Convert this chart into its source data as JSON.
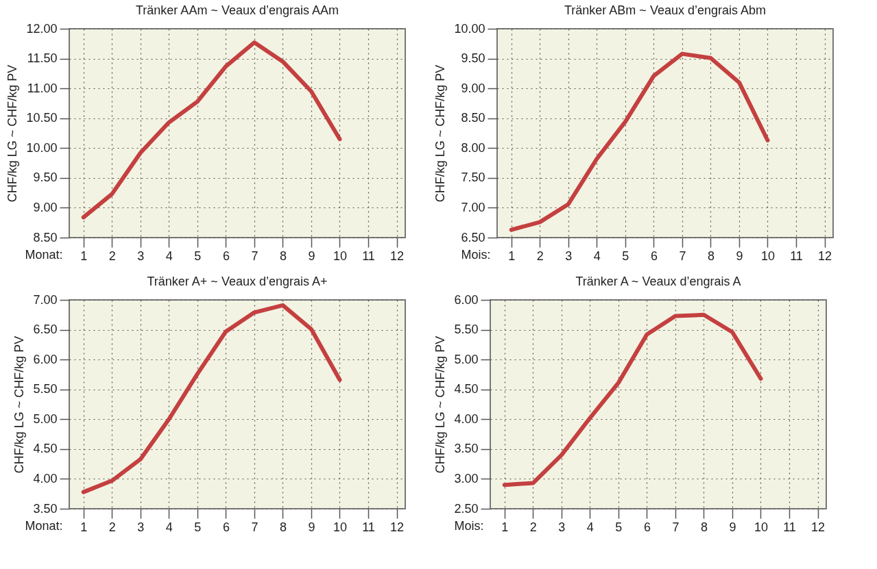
{
  "chart_data": [
    {
      "type": "line",
      "title": "Tränker AAm ~ Veaux d’engrais AAm",
      "xlabel": "Monat:",
      "ylabel": "CHF/kg LG ~ CHF/kg PV",
      "x": [
        1,
        2,
        3,
        4,
        5,
        6,
        7,
        8,
        9,
        10
      ],
      "series": [
        {
          "color": "#c44040",
          "values": [
            8.84,
            9.23,
            9.92,
            10.43,
            10.78,
            11.37,
            11.77,
            11.45,
            10.95,
            10.15
          ]
        }
      ],
      "xlim": [
        0.5,
        12.3
      ],
      "xticks": [
        1,
        2,
        3,
        4,
        5,
        6,
        7,
        8,
        9,
        10,
        11,
        12
      ],
      "ylim": [
        8.5,
        12
      ],
      "yticks": [
        {
          "value": 8.5,
          "label": "8.50"
        },
        {
          "value": 9,
          "label": "9.00"
        },
        {
          "value": 9.5,
          "label": "9.50"
        },
        {
          "value": 10,
          "label": "10.00"
        },
        {
          "value": 10.5,
          "label": "10.50"
        },
        {
          "value": 11,
          "label": "11.00"
        },
        {
          "value": 11.5,
          "label": "11.50"
        },
        {
          "value": 12,
          "label": "12.00"
        }
      ],
      "grid": true,
      "marker": "none",
      "line_style": "solid"
    },
    {
      "type": "line",
      "title": "Tränker ABm ~ Veaux d’engrais Abm",
      "xlabel": "Mois:",
      "ylabel": "CHF/kg LG ~ CHF/kg PV",
      "x": [
        1,
        2,
        3,
        4,
        5,
        6,
        7,
        8,
        9,
        10
      ],
      "series": [
        {
          "color": "#c44040",
          "values": [
            6.63,
            6.76,
            7.06,
            7.82,
            8.44,
            9.21,
            9.58,
            9.51,
            9.1,
            8.13
          ]
        }
      ],
      "xlim": [
        0.5,
        12.3
      ],
      "xticks": [
        1,
        2,
        3,
        4,
        5,
        6,
        7,
        8,
        9,
        10,
        11,
        12
      ],
      "ylim": [
        6.5,
        10
      ],
      "yticks": [
        {
          "value": 6.5,
          "label": "6.50"
        },
        {
          "value": 7,
          "label": "7.00"
        },
        {
          "value": 7.5,
          "label": "7.50"
        },
        {
          "value": 8,
          "label": "8.00"
        },
        {
          "value": 8.5,
          "label": "8.50"
        },
        {
          "value": 9,
          "label": "9.00"
        },
        {
          "value": 9.5,
          "label": "9.50"
        },
        {
          "value": 10,
          "label": "10.00"
        }
      ],
      "grid": true,
      "marker": "none",
      "line_style": "solid"
    },
    {
      "type": "line",
      "title": "Tränker A+ ~ Veaux d’engrais A+",
      "xlabel": "Monat:",
      "ylabel": "CHF/kg LG ~ CHF/kg PV",
      "x": [
        1,
        2,
        3,
        4,
        5,
        6,
        7,
        8,
        9,
        10
      ],
      "series": [
        {
          "color": "#c44040",
          "values": [
            3.78,
            3.97,
            4.33,
            5.0,
            5.76,
            6.47,
            6.79,
            6.91,
            6.51,
            5.66
          ]
        }
      ],
      "xlim": [
        0.5,
        12.3
      ],
      "xticks": [
        1,
        2,
        3,
        4,
        5,
        6,
        7,
        8,
        9,
        10,
        11,
        12
      ],
      "ylim": [
        3.5,
        7
      ],
      "yticks": [
        {
          "value": 3.5,
          "label": "3.50"
        },
        {
          "value": 4,
          "label": "4.00"
        },
        {
          "value": 4.5,
          "label": "4.50"
        },
        {
          "value": 5,
          "label": "5.00"
        },
        {
          "value": 5.5,
          "label": "5.50"
        },
        {
          "value": 6,
          "label": "6.00"
        },
        {
          "value": 6.5,
          "label": "6.50"
        },
        {
          "value": 7,
          "label": "7.00"
        }
      ],
      "grid": true,
      "marker": "none",
      "line_style": "solid"
    },
    {
      "type": "line",
      "title": "Tränker A ~ Veaux d’engrais A",
      "xlabel": "Mois:",
      "ylabel": "CHF/kg LG ~ CHF/kg PV",
      "x": [
        1,
        2,
        3,
        4,
        5,
        6,
        7,
        8,
        9,
        10
      ],
      "series": [
        {
          "color": "#c44040",
          "values": [
            2.9,
            2.93,
            3.4,
            4.02,
            4.61,
            5.42,
            5.73,
            5.75,
            5.46,
            4.68
          ]
        }
      ],
      "xlim": [
        0.5,
        12.3
      ],
      "xticks": [
        1,
        2,
        3,
        4,
        5,
        6,
        7,
        8,
        9,
        10,
        11,
        12
      ],
      "ylim": [
        2.5,
        6
      ],
      "yticks": [
        {
          "value": 2.5,
          "label": "2.50"
        },
        {
          "value": 3,
          "label": "3.00"
        },
        {
          "value": 3.5,
          "label": "3.50"
        },
        {
          "value": 4,
          "label": "4.00"
        },
        {
          "value": 4.5,
          "label": "4.50"
        },
        {
          "value": 5,
          "label": "5.00"
        },
        {
          "value": 5.5,
          "label": "5.50"
        },
        {
          "value": 6,
          "label": "6.00"
        }
      ],
      "grid": true,
      "marker": "none",
      "line_style": "solid"
    }
  ]
}
